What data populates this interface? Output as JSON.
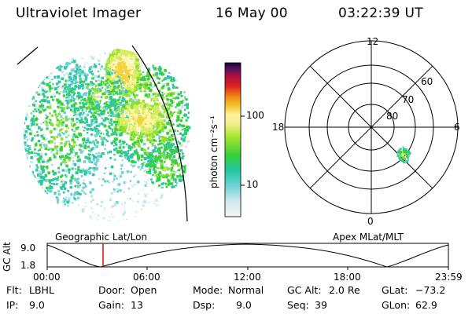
{
  "header": {
    "instrument": "Ultraviolet Imager",
    "date": "16 May 00",
    "time": "03:22:39 UT"
  },
  "colorbar": {
    "unit_label": "photon cm⁻²s⁻¹",
    "ticks": [
      "100",
      "10"
    ]
  },
  "polar_plot": {
    "mlt_labels": [
      "12",
      "18",
      "6",
      "0"
    ],
    "lat_labels": [
      "60",
      "70",
      "80"
    ]
  },
  "timeline": {
    "left_title": "Geographic Lat/Lon",
    "right_title": "Apex MLat/MLT",
    "y_axis_label": "GC Alt",
    "y_ticks": [
      "9.0",
      "1.8"
    ],
    "x_ticks": [
      "00:00",
      "06:00",
      "12:00",
      "18:00",
      "23:59"
    ],
    "current_marker_time": "03:22:39"
  },
  "info": {
    "row1": [
      {
        "label": "Flt:",
        "value": "LBHL"
      },
      {
        "label": "Door:",
        "value": "Open"
      },
      {
        "label": "Mode:",
        "value": "Normal"
      },
      {
        "label": "GC Alt:",
        "value": "2.0 Re"
      },
      {
        "label": "GLat:",
        "value": "−73.2"
      }
    ],
    "row2": [
      {
        "label": "IP:",
        "value": "9.0"
      },
      {
        "label": "Gain:",
        "value": "13"
      },
      {
        "label": "Dsp:",
        "value": "9.0"
      },
      {
        "label": "Seq:",
        "value": "39"
      },
      {
        "label": "GLon:",
        "value": "62.9"
      }
    ]
  },
  "colors": {
    "marker": "#cc0000",
    "grid": "#000000"
  }
}
